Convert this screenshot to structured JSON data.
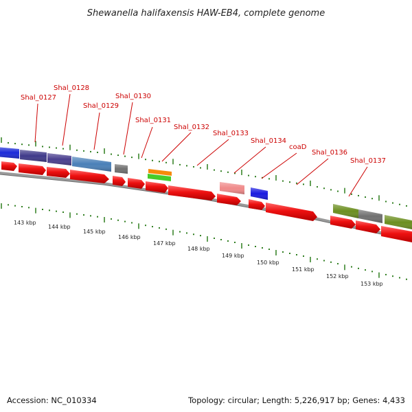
{
  "title": "Shewanella halifaxensis HAW-EB4, complete genome",
  "footer": {
    "accession": "Accession: NC_010334",
    "summary": "Topology: circular; Length: 5,226,917 bp; Genes: 4,433"
  },
  "colors": {
    "cds": "#ee1111",
    "backbone": "#888888",
    "tick_green": "#2e7d1e",
    "label_red": "#cc0000"
  },
  "gene_labels": [
    "Shal_0127",
    "Shal_0128",
    "Shal_0129",
    "Shal_0130",
    "Shal_0131",
    "Shal_0132",
    "Shal_0133",
    "Shal_0134",
    "coaD",
    "Shal_0136",
    "Shal_0137"
  ],
  "scale_labels": [
    "143 kbp",
    "144 kbp",
    "145 kbp",
    "146 kbp",
    "147 kbp",
    "148 kbp",
    "149 kbp",
    "150 kbp",
    "151 kbp",
    "152 kbp",
    "153 kbp"
  ]
}
